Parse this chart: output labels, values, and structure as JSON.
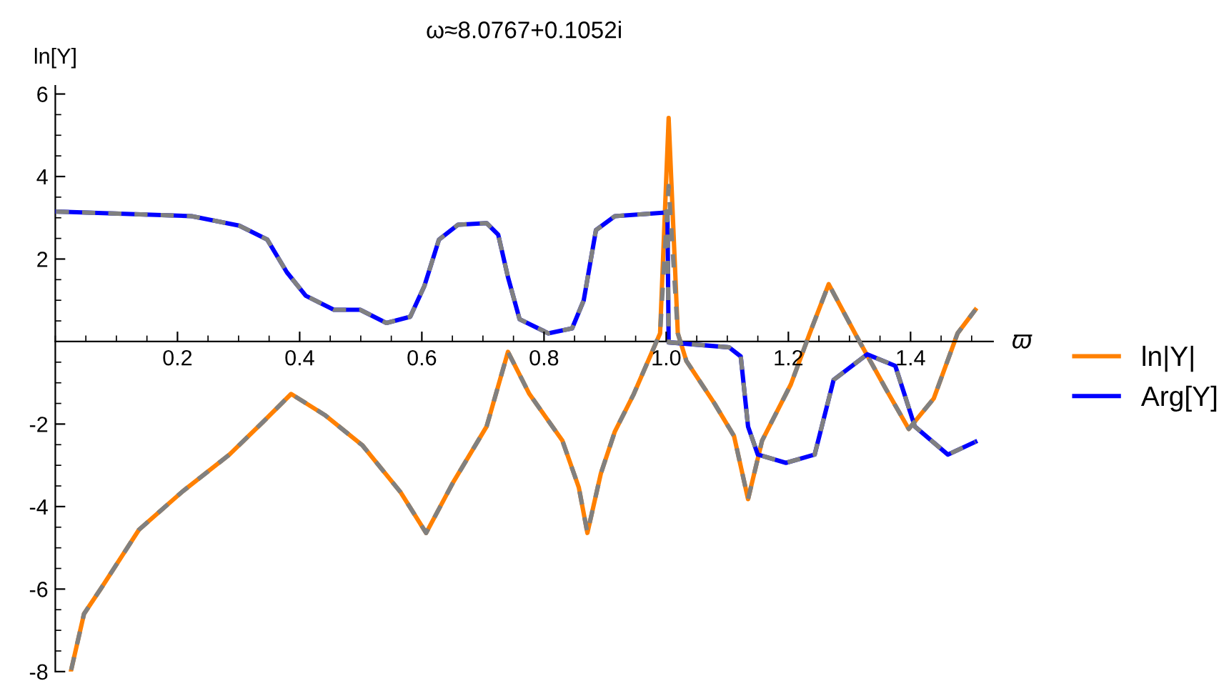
{
  "chart_data": {
    "type": "line",
    "title": "ω≈8.0767+0.1052i",
    "xlabel": "ϖ",
    "ylabel": "ln[Y]",
    "xlim": [
      0,
      1.535
    ],
    "ylim": [
      -8,
      6.2
    ],
    "xticks": [
      0.2,
      0.4,
      0.6,
      0.8,
      {
        "value": 1.0,
        "label": "1.0"
      },
      1.2,
      1.4
    ],
    "yticks": [
      -8,
      -6,
      -4,
      -2,
      2,
      4,
      6
    ],
    "grid": false,
    "legend": "right",
    "line_style": "solid",
    "series": [
      {
        "name": "ln|Y|",
        "color": "#ff8000",
        "x": [
          0.026,
          0.047,
          0.075,
          0.137,
          0.207,
          0.285,
          0.34,
          0.386,
          0.441,
          0.503,
          0.565,
          0.607,
          0.651,
          0.706,
          0.741,
          0.776,
          0.83,
          0.857,
          0.871,
          0.893,
          0.916,
          0.947,
          0.99,
          1.004,
          1.019,
          1.033,
          1.079,
          1.111,
          1.134,
          1.157,
          1.204,
          1.235,
          1.266,
          1.313,
          1.36,
          1.397,
          1.438,
          1.477,
          1.506
        ],
        "values": [
          -7.96,
          -6.6,
          -5.98,
          -4.56,
          -3.65,
          -2.74,
          -1.95,
          -1.27,
          -1.78,
          -2.52,
          -3.65,
          -4.64,
          -3.42,
          -2.06,
          -0.25,
          -1.27,
          -2.4,
          -3.54,
          -4.64,
          -3.2,
          -2.18,
          -1.27,
          0.2,
          5.42,
          0.2,
          -0.47,
          -1.5,
          -2.29,
          -3.82,
          -2.4,
          -1.04,
          0.2,
          1.39,
          0.09,
          -1.16,
          -2.12,
          -1.38,
          0.2,
          0.77
        ]
      },
      {
        "name": "Arg[Y]",
        "color": "#0000ff",
        "x": [
          0.001,
          0.223,
          0.301,
          0.347,
          0.379,
          0.41,
          0.456,
          0.499,
          0.542,
          0.581,
          0.604,
          0.628,
          0.659,
          0.706,
          0.725,
          0.741,
          0.76,
          0.807,
          0.846,
          0.865,
          0.885,
          0.916,
          1.002,
          1.004,
          1.103,
          1.122,
          1.134,
          1.15,
          1.196,
          1.243,
          1.274,
          1.329,
          1.375,
          1.407,
          1.461,
          1.506
        ],
        "values": [
          3.15,
          3.04,
          2.81,
          2.47,
          1.68,
          1.11,
          0.77,
          0.77,
          0.45,
          0.6,
          1.34,
          2.47,
          2.83,
          2.87,
          2.59,
          1.56,
          0.54,
          0.2,
          0.32,
          1.0,
          2.7,
          3.04,
          3.13,
          -0.02,
          -0.14,
          -0.36,
          -2.06,
          -2.74,
          -2.94,
          -2.74,
          -0.93,
          -0.31,
          -0.59,
          -2.06,
          -2.74,
          -2.43
        ]
      },
      {
        "color": "#808080",
        "line_style": "dashed",
        "x": [
          0.026,
          0.047,
          0.075,
          0.137,
          0.207,
          0.285,
          0.34,
          0.386,
          0.441,
          0.503,
          0.565,
          0.607,
          0.651,
          0.706,
          0.741,
          0.776,
          0.83,
          0.857,
          0.871,
          0.893,
          0.916,
          0.947,
          0.99,
          1.004,
          1.019,
          1.033,
          1.079,
          1.111,
          1.134,
          1.157,
          1.204,
          1.235,
          1.266,
          1.313,
          1.36,
          1.397,
          1.438,
          1.477,
          1.506
        ],
        "values": [
          -7.96,
          -6.6,
          -5.98,
          -4.56,
          -3.65,
          -2.74,
          -1.95,
          -1.27,
          -1.78,
          -2.52,
          -3.65,
          -4.64,
          -3.42,
          -2.06,
          -0.25,
          -1.27,
          -2.4,
          -3.54,
          -4.64,
          -3.2,
          -2.18,
          -1.27,
          0.2,
          3.77,
          0.2,
          -0.47,
          -1.5,
          -2.29,
          -3.82,
          -2.4,
          -1.04,
          0.2,
          1.39,
          0.09,
          -1.16,
          -2.12,
          -1.38,
          0.2,
          0.77
        ]
      },
      {
        "color": "#808080",
        "line_style": "dashed",
        "x": [
          0.001,
          0.223,
          0.301,
          0.347,
          0.379,
          0.41,
          0.456,
          0.499,
          0.542,
          0.581,
          0.604,
          0.628,
          0.659,
          0.706,
          0.725,
          0.741,
          0.76,
          0.807,
          0.846,
          0.865,
          0.885,
          0.916,
          1.002,
          1.004,
          1.103,
          1.122,
          1.134,
          1.15,
          1.196,
          1.243,
          1.274,
          1.329,
          1.375,
          1.407,
          1.461,
          1.506
        ],
        "values": [
          3.15,
          3.04,
          2.81,
          2.47,
          1.68,
          1.11,
          0.77,
          0.77,
          0.45,
          0.6,
          1.34,
          2.47,
          2.83,
          2.87,
          2.59,
          1.56,
          0.54,
          0.2,
          0.32,
          1.0,
          2.7,
          3.04,
          3.13,
          -0.02,
          -0.14,
          -0.36,
          -2.06,
          -2.74,
          -2.94,
          -2.74,
          -0.93,
          -0.31,
          -0.59,
          -2.06,
          -2.74,
          -2.43
        ]
      }
    ]
  }
}
